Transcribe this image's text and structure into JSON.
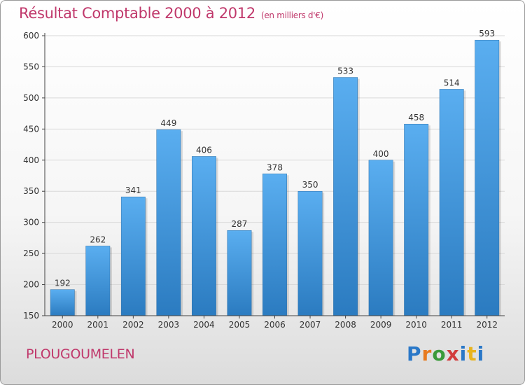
{
  "header": {
    "title": "Résultat Comptable 2000 à 2012",
    "subtitle": "(en milliers d'€)"
  },
  "footer": {
    "town": "PLOUGOUMELEN",
    "logo_text": "Proxiti"
  },
  "colors": {
    "title": "#c0386b",
    "bar_top": "#5aaef0",
    "bar_bottom": "#2b7bc0",
    "grid": "#d9d9d9"
  },
  "chart_data": {
    "type": "bar",
    "categories": [
      "2000",
      "2001",
      "2002",
      "2003",
      "2004",
      "2005",
      "2006",
      "2007",
      "2008",
      "2009",
      "2010",
      "2011",
      "2012"
    ],
    "values": [
      192,
      262,
      341,
      449,
      406,
      287,
      378,
      350,
      533,
      400,
      458,
      514,
      593
    ],
    "ylim": [
      150,
      600
    ],
    "yticks": [
      150,
      200,
      250,
      300,
      350,
      400,
      450,
      500,
      550,
      600
    ],
    "grid": true,
    "data_labels": true
  }
}
